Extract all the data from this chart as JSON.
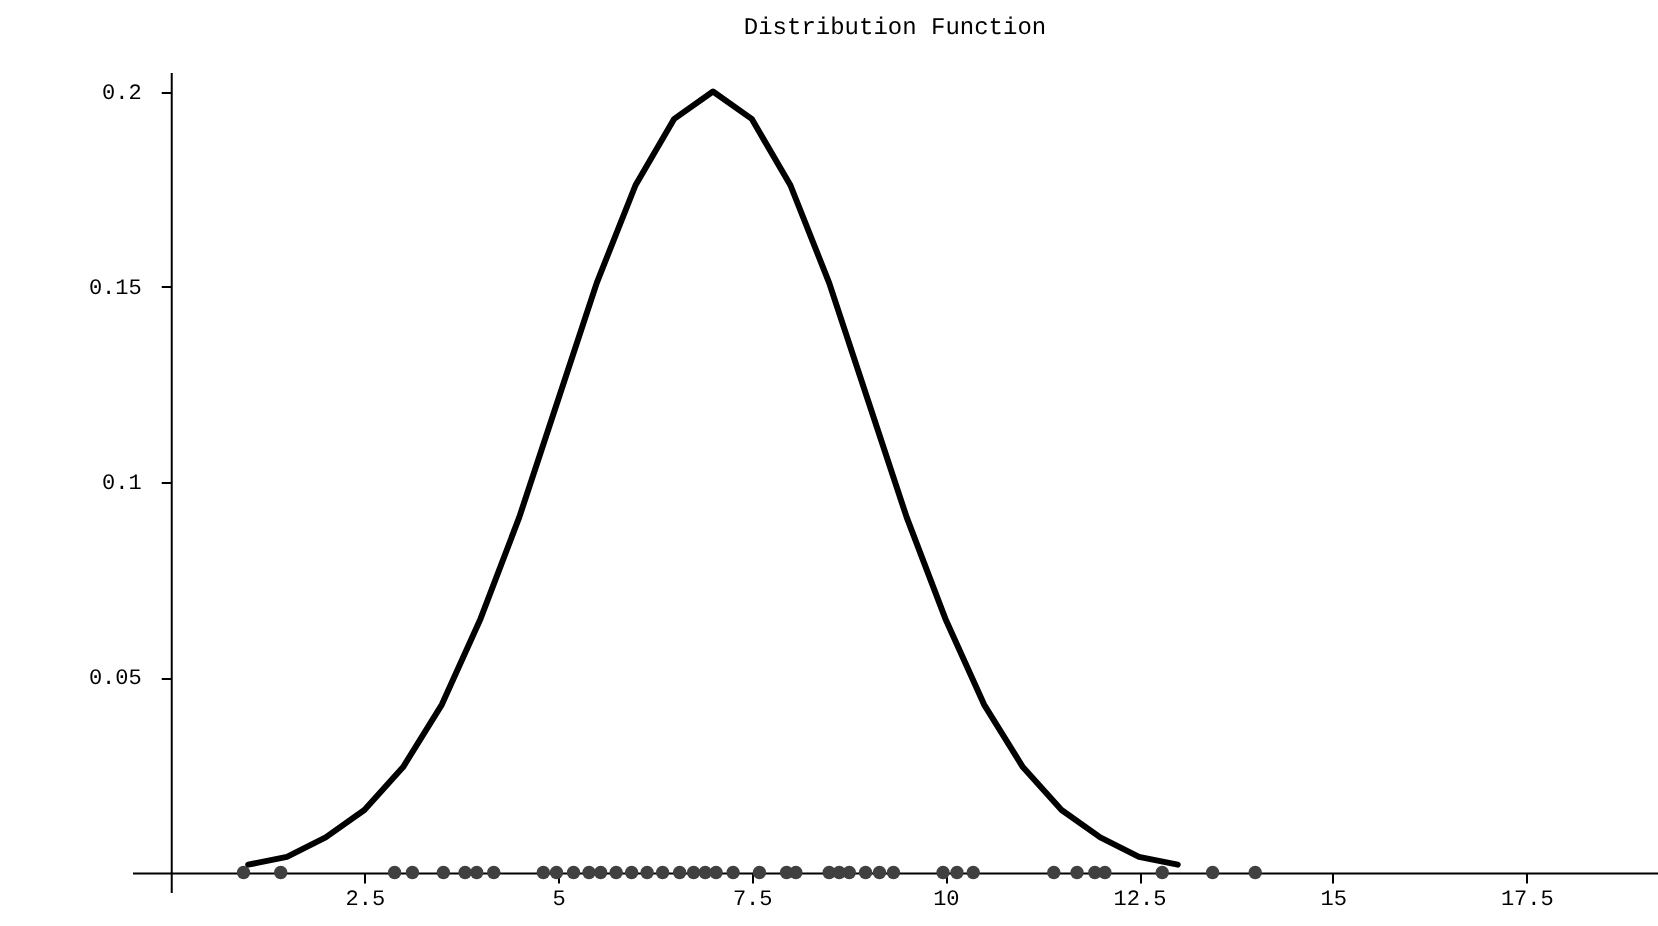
{
  "chart_data": {
    "type": "line",
    "title": "Distribution    Function",
    "xlim": [
      -0.5,
      19.2
    ],
    "ylim": [
      -0.005,
      0.205
    ],
    "xticks": [
      2.5,
      5,
      7.5,
      10,
      12.5,
      15,
      17.5
    ],
    "yticks": [
      0.05,
      0.1,
      0.15,
      0.2
    ],
    "grid": false,
    "series": [
      {
        "color": "#000000",
        "line_style": "solid",
        "x": [
          1,
          1.5,
          2,
          2.5,
          3,
          3.5,
          4,
          4.5,
          5,
          5.5,
          6,
          6.5,
          7,
          7.5,
          8,
          8.5,
          9,
          9.5,
          10,
          10.5,
          11,
          11.5,
          12,
          12.5,
          13
        ],
        "values": [
          0.002,
          0.004,
          0.009,
          0.016,
          0.027,
          0.043,
          0.065,
          0.091,
          0.121,
          0.151,
          0.176,
          0.193,
          0.2,
          0.193,
          0.176,
          0.151,
          0.121,
          0.091,
          0.065,
          0.043,
          0.027,
          0.016,
          0.009,
          0.004,
          0.002
        ]
      },
      {
        "type": "scatter",
        "color": "#404040",
        "marker": "circle",
        "x": [
          0.94,
          1.42,
          2.89,
          3.12,
          3.52,
          3.8,
          3.95,
          4.17,
          4.81,
          4.98,
          5.2,
          5.4,
          5.55,
          5.75,
          5.95,
          6.15,
          6.35,
          6.57,
          6.75,
          6.9,
          7.04,
          7.26,
          7.6,
          7.95,
          8.07,
          8.5,
          8.63,
          8.76,
          8.97,
          9.15,
          9.33,
          9.97,
          10.15,
          10.36,
          11.4,
          11.7,
          11.93,
          12.06,
          12.8,
          13.45,
          14.0
        ],
        "values": [
          0,
          0,
          0,
          0,
          0,
          0,
          0,
          0,
          0,
          0,
          0,
          0,
          0,
          0,
          0,
          0,
          0,
          0,
          0,
          0,
          0,
          0,
          0,
          0,
          0,
          0,
          0,
          0,
          0,
          0,
          0,
          0,
          0,
          0,
          0,
          0,
          0,
          0,
          0,
          0,
          0
        ]
      }
    ]
  }
}
